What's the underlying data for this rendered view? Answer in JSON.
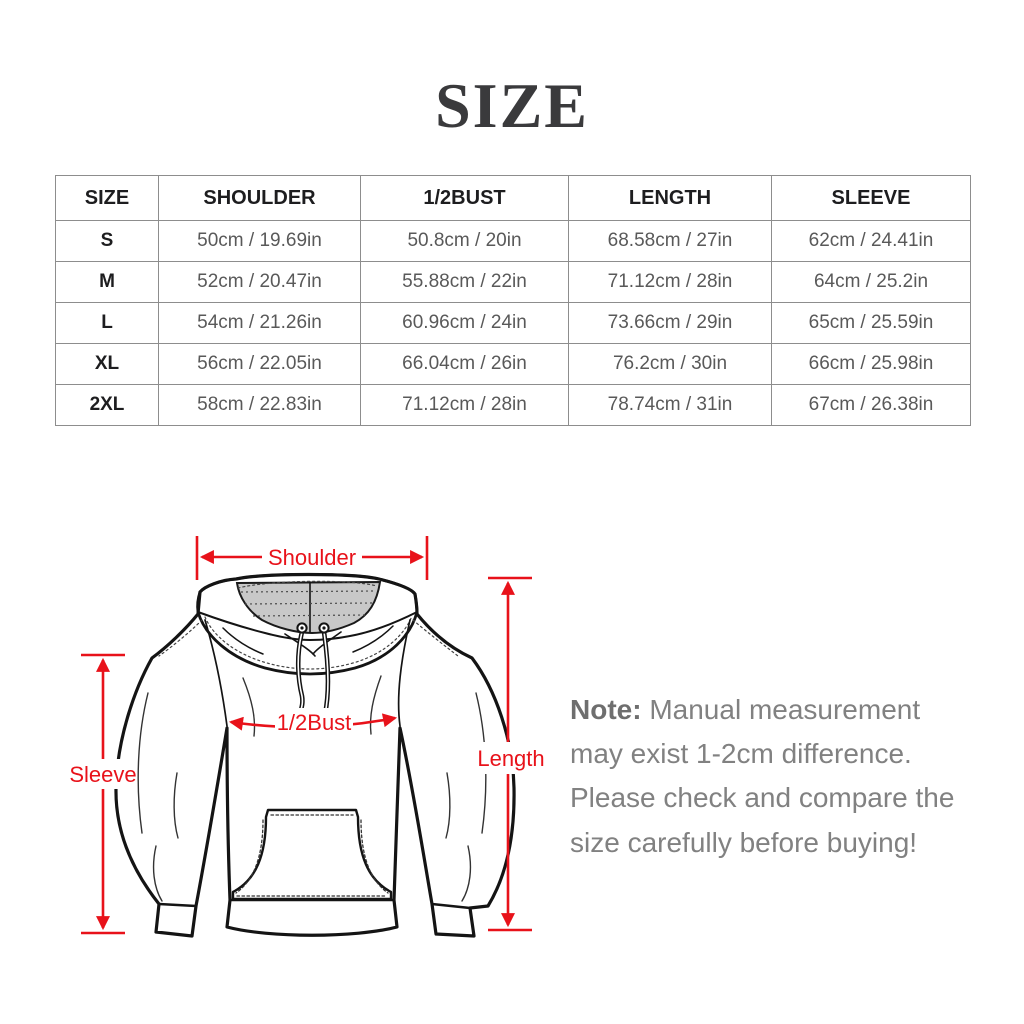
{
  "title": "SIZE",
  "table": {
    "headers": [
      "SIZE",
      "SHOULDER",
      "1/2BUST",
      "LENGTH",
      "SLEEVE"
    ],
    "rows": [
      [
        "S",
        "50cm / 19.69in",
        "50.8cm / 20in",
        "68.58cm / 27in",
        "62cm / 24.41in"
      ],
      [
        "M",
        "52cm / 20.47in",
        "55.88cm / 22in",
        "71.12cm / 28in",
        "64cm / 25.2in"
      ],
      [
        "L",
        "54cm / 21.26in",
        "60.96cm / 24in",
        "73.66cm / 29in",
        "65cm / 25.59in"
      ],
      [
        "XL",
        "56cm / 22.05in",
        "66.04cm / 26in",
        "76.2cm / 30in",
        "66cm / 25.98in"
      ],
      [
        "2XL",
        "58cm / 22.83in",
        "71.12cm / 28in",
        "78.74cm / 31in",
        "67cm / 26.38in"
      ]
    ]
  },
  "diagram": {
    "labels": {
      "shoulder": "Shoulder",
      "bust": "1/2Bust",
      "length": "Length",
      "sleeve": "Sleeve"
    },
    "arrow_color": "#e8121a"
  },
  "note": {
    "label": "Note:",
    "text": "Manual measurement may exist 1-2cm difference. Please check and compare the size carefully before buying!"
  }
}
